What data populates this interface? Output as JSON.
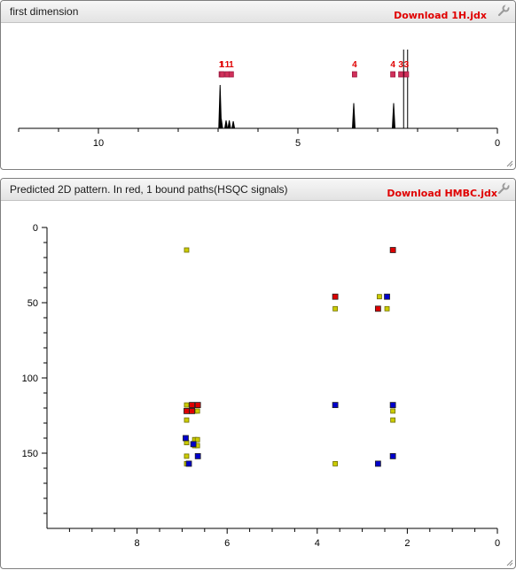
{
  "panel_1d": {
    "title": "first dimension",
    "download_label": "Download 1H.jdx",
    "settings_icon": "wrench-icon",
    "resize_icon": "resize-grip-icon"
  },
  "panel_2d": {
    "title": "Predicted 2D pattern. In red, 1 bound paths(HSQC signals)",
    "download_label": "Download HMBC.jdx",
    "settings_icon": "wrench-icon",
    "resize_icon": "resize-grip-icon"
  },
  "colors": {
    "label_red": "#e00000",
    "peak_marker": "#d0305a",
    "bound_path": "#dd0000",
    "blue": "#0000cc",
    "yellow": "#cccc00",
    "axis": "#000000"
  },
  "chart_data": [
    {
      "type": "line",
      "name": "1H spectrum",
      "xlim": [
        12,
        0
      ],
      "x_ticks": [
        10,
        5,
        0
      ],
      "peaks": [
        {
          "ppm": 6.95,
          "height": 0.55
        },
        {
          "ppm": 6.92,
          "height": 0.12
        },
        {
          "ppm": 6.8,
          "height": 0.1
        },
        {
          "ppm": 6.72,
          "height": 0.1
        },
        {
          "ppm": 6.62,
          "height": 0.09
        },
        {
          "ppm": 3.6,
          "height": 0.32
        },
        {
          "ppm": 2.6,
          "height": 0.32
        },
        {
          "ppm": 2.35,
          "height": 1.0
        },
        {
          "ppm": 2.25,
          "height": 1.0
        }
      ],
      "assignments": [
        {
          "ppm": 6.92,
          "label": "1"
        },
        {
          "ppm": 6.9,
          "label": "1"
        },
        {
          "ppm": 6.77,
          "label": "1"
        },
        {
          "ppm": 6.67,
          "label": "1"
        },
        {
          "ppm": 3.58,
          "label": "4"
        },
        {
          "ppm": 2.62,
          "label": "4"
        },
        {
          "ppm": 2.42,
          "label": "3"
        },
        {
          "ppm": 2.28,
          "label": "3"
        }
      ]
    },
    {
      "type": "scatter",
      "name": "Predicted 2D pattern",
      "xlim": [
        10,
        0
      ],
      "ylim": [
        0,
        200
      ],
      "y_inverted": true,
      "x_ticks": [
        8,
        6,
        4,
        2,
        0
      ],
      "y_ticks": [
        0,
        50,
        100,
        150
      ],
      "series": [
        {
          "name": "yellow",
          "color": "#cccc00",
          "points": [
            [
              6.9,
              15
            ],
            [
              6.9,
              118
            ],
            [
              6.9,
              128
            ],
            [
              6.9,
              143
            ],
            [
              6.9,
              152
            ],
            [
              6.9,
              157
            ],
            [
              6.72,
              122
            ],
            [
              6.66,
              122
            ],
            [
              6.72,
              141
            ],
            [
              6.66,
              141
            ],
            [
              6.72,
              145
            ],
            [
              6.66,
              145
            ],
            [
              3.6,
              54
            ],
            [
              2.62,
              46
            ],
            [
              2.45,
              54
            ],
            [
              2.32,
              122
            ],
            [
              2.32,
              128
            ],
            [
              3.6,
              157
            ]
          ]
        },
        {
          "name": "blue",
          "color": "#0000cc",
          "points": [
            [
              6.92,
              140
            ],
            [
              6.85,
              157
            ],
            [
              6.75,
              144
            ],
            [
              6.65,
              152
            ],
            [
              3.6,
              118
            ],
            [
              2.45,
              46
            ],
            [
              2.32,
              118
            ],
            [
              2.32,
              152
            ],
            [
              2.65,
              157
            ]
          ]
        },
        {
          "name": "red",
          "color": "#dd0000",
          "points": [
            [
              2.32,
              15
            ],
            [
              3.6,
              46
            ],
            [
              2.65,
              54
            ],
            [
              6.9,
              122
            ],
            [
              6.78,
              118
            ],
            [
              6.78,
              122
            ],
            [
              6.65,
              118
            ]
          ]
        }
      ]
    }
  ]
}
